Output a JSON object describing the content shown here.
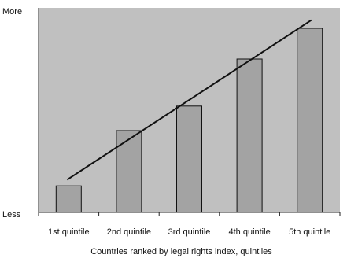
{
  "chart_data": {
    "type": "bar",
    "categories": [
      "1st quintile",
      "2nd quintile",
      "3rd quintile",
      "4th quintile",
      "5th quintile"
    ],
    "values": [
      13,
      40,
      52,
      75,
      90
    ],
    "ylim": [
      0,
      100
    ],
    "y_labels": {
      "top": "More",
      "bottom": "Less"
    },
    "xlabel": "Countries ranked by legal rights index, quintiles",
    "ylabel": "",
    "trendline": {
      "start": 16,
      "end": 94
    },
    "grid": false,
    "legend": "none",
    "colors": {
      "plot_background": "#c0c0c0",
      "bar_fill": "#a3a3a3",
      "bar_stroke": "#111111",
      "trendline": "#111111"
    }
  }
}
